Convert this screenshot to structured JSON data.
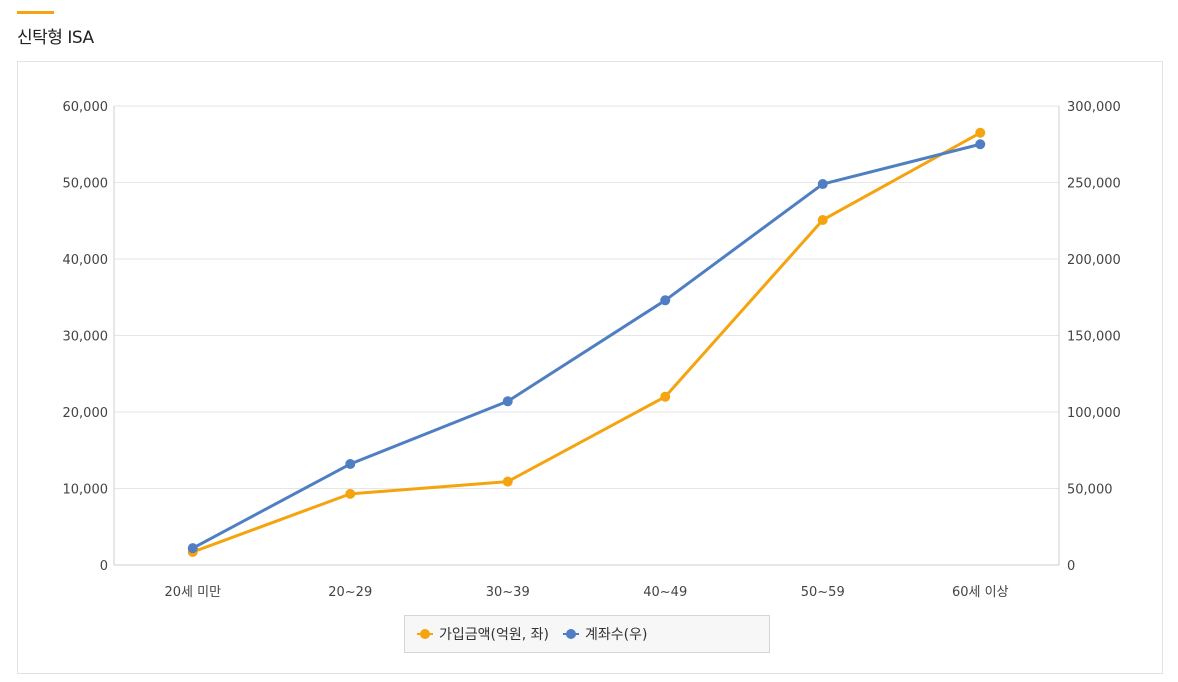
{
  "section": {
    "title": "신탁형 ISA"
  },
  "colors": {
    "accent": "#f5a30f",
    "series_amount": "#f5a30f",
    "series_accounts": "#4f7fc2"
  },
  "chart_data": {
    "type": "line",
    "categories": [
      "20세 미만",
      "20~29",
      "30~39",
      "40~49",
      "50~59",
      "60세 이상"
    ],
    "series": [
      {
        "name": "가입금액(억원, 좌)",
        "axis": "left",
        "values": [
          1700,
          9300,
          10900,
          22000,
          45100,
          56500
        ]
      },
      {
        "name": "계좌수(우)",
        "axis": "right",
        "values": [
          11000,
          66000,
          107000,
          173000,
          249000,
          275000
        ]
      }
    ],
    "y_left": {
      "ylim": [
        0,
        60000
      ],
      "ticks": [
        "0",
        "10,000",
        "20,000",
        "30,000",
        "40,000",
        "50,000",
        "60,000"
      ]
    },
    "y_right": {
      "ylim": [
        0,
        300000
      ],
      "ticks": [
        "0",
        "50,000",
        "100,000",
        "150,000",
        "200,000",
        "250,000",
        "300,000"
      ]
    },
    "grid": true,
    "legend": "bottom-center"
  }
}
